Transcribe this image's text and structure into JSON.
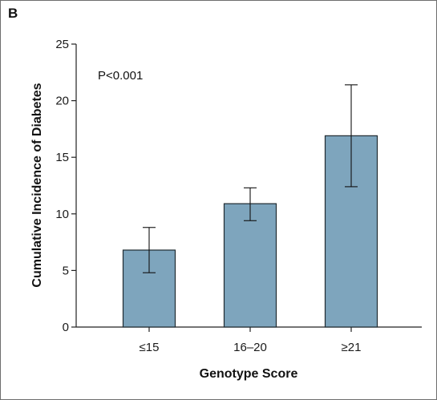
{
  "panel_label": "B",
  "chart_data": {
    "type": "bar",
    "categories": [
      "≤15",
      "16–20",
      "≥21"
    ],
    "values": [
      6.8,
      10.9,
      16.9
    ],
    "error_low": [
      4.8,
      9.4,
      12.4
    ],
    "error_high": [
      8.8,
      12.3,
      21.4
    ],
    "ylim": [
      0,
      25
    ],
    "yticks": [
      0,
      5,
      10,
      15,
      20,
      25
    ],
    "xlabel": "Genotype Score",
    "ylabel": "Cumulative Incidence of Diabetes",
    "annotation": "P<0.001",
    "grid": false,
    "bar_color": "#7ea5bd"
  }
}
